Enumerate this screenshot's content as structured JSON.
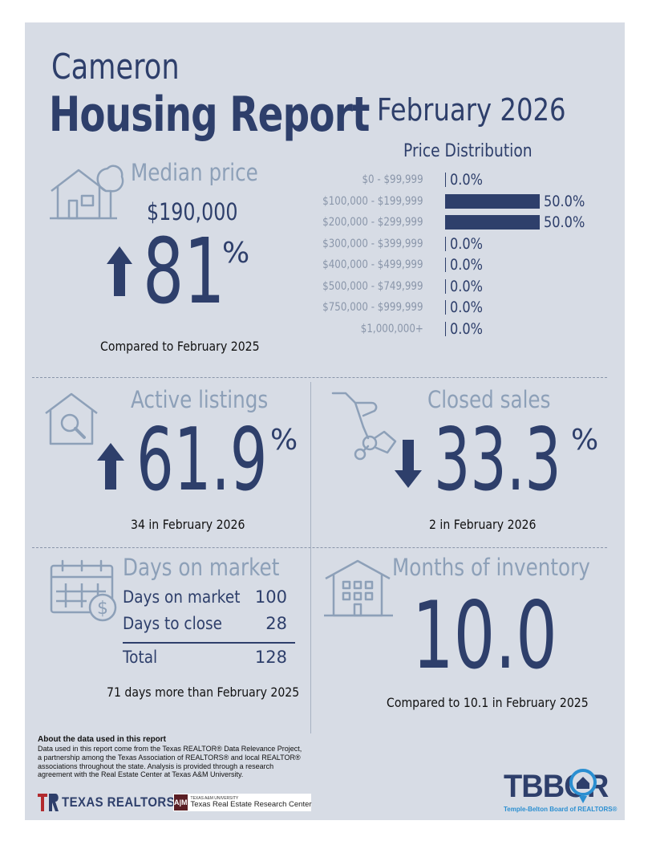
{
  "header": {
    "city": "Cameron",
    "title": "Housing Report",
    "month": "February 2026"
  },
  "median_price": {
    "label": "Median price",
    "value": "$190,000",
    "change": "81",
    "pct_symbol": "%",
    "direction": "up",
    "caption": "Compared to February 2025"
  },
  "price_distribution": {
    "title": "Price Distribution",
    "rows": [
      {
        "label": "$0 - $99,999",
        "value": "0.0%",
        "pct": 0
      },
      {
        "label": "$100,000 - $199,999",
        "value": "50.0%",
        "pct": 50
      },
      {
        "label": "$200,000 - $299,999",
        "value": "50.0%",
        "pct": 50
      },
      {
        "label": "$300,000 - $399,999",
        "value": "0.0%",
        "pct": 0
      },
      {
        "label": "$400,000 - $499,999",
        "value": "0.0%",
        "pct": 0
      },
      {
        "label": "$500,000 - $749,999",
        "value": "0.0%",
        "pct": 0
      },
      {
        "label": "$750,000 - $999,999",
        "value": "0.0%",
        "pct": 0
      },
      {
        "label": "$1,000,000+",
        "value": "0.0%",
        "pct": 0
      }
    ]
  },
  "active_listings": {
    "label": "Active listings",
    "change": "61.9",
    "pct_symbol": "%",
    "direction": "up",
    "caption": "34 in February 2026"
  },
  "closed_sales": {
    "label": "Closed sales",
    "change": "33.3",
    "pct_symbol": "%",
    "direction": "down",
    "caption": "2 in February 2026"
  },
  "days_on_market": {
    "label": "Days on market",
    "rows": [
      {
        "label": "Days on market",
        "value": "100"
      },
      {
        "label": "Days to close",
        "value": "28"
      }
    ],
    "total_label": "Total",
    "total_value": "128",
    "caption": "71 days more than February 2025"
  },
  "months_inventory": {
    "label": "Months of inventory",
    "value": "10.0",
    "caption": "Compared to 10.1 in February 2025"
  },
  "about": {
    "title": "About the data used in this report",
    "text": "Data used in this report come from the Texas REALTOR® Data Relevance Project, a partnership among the Texas Association of REALTORS® and local REALTOR® associations throughout the state. Analysis is provided through a research agreement with the Real Estate Center at Texas A&M University."
  },
  "logos": {
    "texas_realtors": "TEXAS REALTORS",
    "tamu_small": "TEXAS A&M UNIVERSITY",
    "tamu_center": "Texas Real Estate Research Center",
    "tbbor": "TBBOR",
    "tbbor_sub": "Temple-Belton Board of REALTORS®"
  },
  "colors": {
    "navy": "#2e3f6b",
    "light_label": "#8da0b8",
    "panel": "#d7dce5",
    "tbbor_blue": "#2b8fd1",
    "texas_red": "#b22a2e"
  },
  "icons": [
    "house-tree-icon",
    "house-magnifier-icon",
    "hand-keys-icon",
    "calendar-dollar-icon",
    "apartment-building-icon",
    "arrow-up-icon",
    "arrow-down-icon"
  ]
}
